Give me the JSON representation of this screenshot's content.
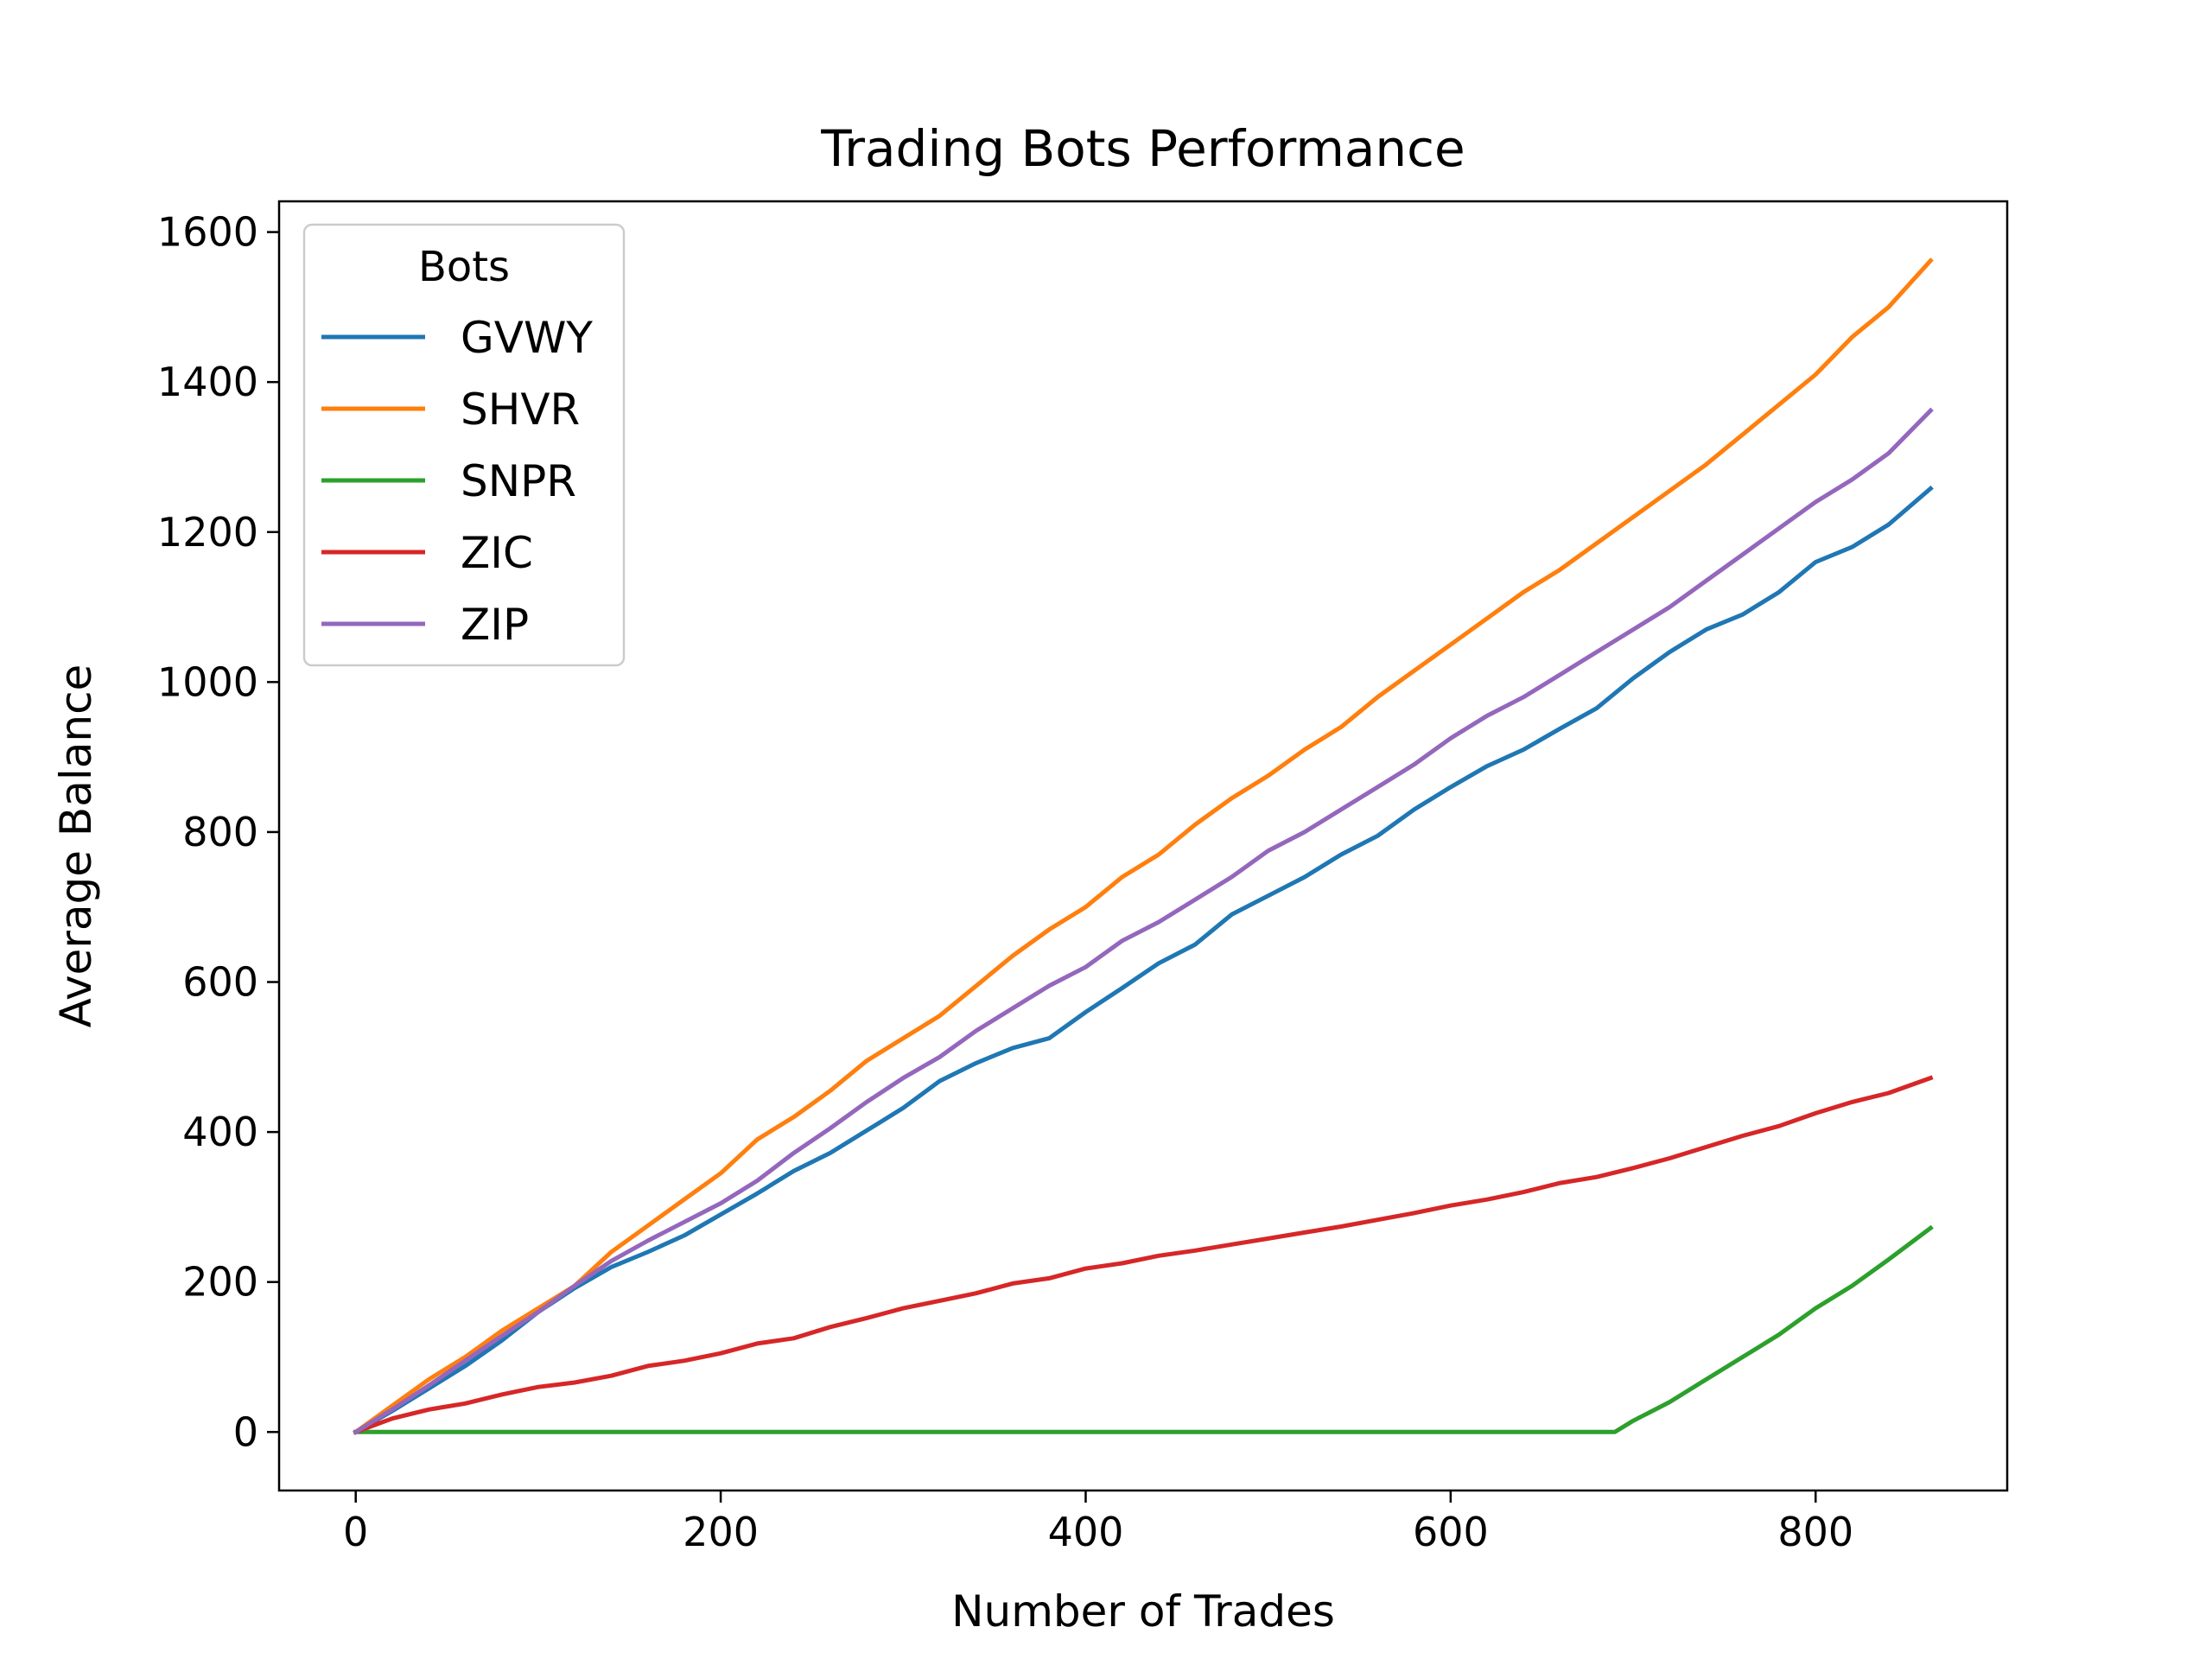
{
  "chart_data": {
    "type": "line",
    "title": "Trading Bots Performance",
    "xlabel": "Number of Trades",
    "ylabel": "Average Balance",
    "xlim": [
      -42,
      905
    ],
    "ylim": [
      -78,
      1641
    ],
    "xticks": [
      0,
      200,
      400,
      600,
      800
    ],
    "yticks": [
      0,
      200,
      400,
      600,
      800,
      1000,
      1200,
      1400,
      1600
    ],
    "grid": false,
    "legend": {
      "title": "Bots",
      "position": "upper left"
    },
    "series": [
      {
        "name": "GVWY",
        "color": "#1f77b4",
        "x": [
          0,
          20,
          40,
          60,
          80,
          100,
          120,
          140,
          160,
          180,
          200,
          220,
          240,
          260,
          280,
          300,
          320,
          340,
          360,
          380,
          400,
          420,
          440,
          460,
          480,
          500,
          520,
          540,
          560,
          580,
          600,
          620,
          640,
          660,
          680,
          700,
          720,
          740,
          760,
          780,
          800,
          820,
          840,
          863
        ],
        "values": [
          0,
          28,
          58,
          88,
          122,
          160,
          192,
          220,
          240,
          262,
          290,
          318,
          348,
          372,
          402,
          432,
          468,
          492,
          512,
          525,
          560,
          592,
          625,
          650,
          690,
          715,
          740,
          770,
          795,
          830,
          860,
          888,
          910,
          938,
          965,
          1005,
          1040,
          1070,
          1090,
          1120,
          1160,
          1180,
          1210,
          1258
        ]
      },
      {
        "name": "SHVR",
        "color": "#ff7f0e",
        "x": [
          0,
          20,
          40,
          60,
          80,
          100,
          120,
          140,
          160,
          180,
          200,
          220,
          240,
          260,
          280,
          300,
          320,
          340,
          360,
          380,
          400,
          420,
          440,
          460,
          480,
          500,
          520,
          540,
          560,
          580,
          600,
          620,
          640,
          660,
          680,
          700,
          720,
          740,
          760,
          780,
          800,
          820,
          840,
          863
        ],
        "values": [
          0,
          35,
          70,
          100,
          135,
          165,
          195,
          240,
          275,
          310,
          345,
          390,
          420,
          455,
          495,
          525,
          555,
          595,
          635,
          670,
          700,
          740,
          770,
          810,
          845,
          875,
          910,
          940,
          980,
          1015,
          1050,
          1085,
          1120,
          1150,
          1185,
          1220,
          1255,
          1290,
          1330,
          1370,
          1410,
          1460,
          1500,
          1562
        ]
      },
      {
        "name": "SNPR",
        "color": "#2ca02c",
        "x": [
          0,
          100,
          200,
          300,
          400,
          500,
          600,
          690,
          700,
          720,
          740,
          760,
          780,
          800,
          820,
          840,
          863
        ],
        "values": [
          0,
          0,
          0,
          0,
          0,
          0,
          0,
          0,
          15,
          40,
          70,
          100,
          130,
          165,
          195,
          230,
          272
        ]
      },
      {
        "name": "ZIC",
        "color": "#d62728",
        "x": [
          0,
          20,
          40,
          60,
          80,
          100,
          120,
          140,
          160,
          180,
          200,
          220,
          240,
          260,
          280,
          300,
          320,
          340,
          360,
          380,
          400,
          420,
          440,
          460,
          480,
          500,
          520,
          540,
          560,
          580,
          600,
          620,
          640,
          660,
          680,
          700,
          720,
          740,
          760,
          780,
          800,
          820,
          840,
          863
        ],
        "values": [
          0,
          18,
          30,
          38,
          50,
          60,
          66,
          75,
          88,
          95,
          105,
          118,
          125,
          140,
          152,
          165,
          175,
          185,
          198,
          205,
          218,
          225,
          235,
          242,
          250,
          258,
          266,
          274,
          283,
          292,
          302,
          310,
          320,
          332,
          340,
          352,
          365,
          380,
          395,
          408,
          425,
          440,
          452,
          472
        ]
      },
      {
        "name": "ZIP",
        "color": "#9467bd",
        "x": [
          0,
          20,
          40,
          60,
          80,
          100,
          120,
          140,
          160,
          180,
          200,
          220,
          240,
          260,
          280,
          300,
          320,
          340,
          360,
          380,
          400,
          420,
          440,
          460,
          480,
          500,
          520,
          540,
          560,
          580,
          600,
          620,
          640,
          660,
          680,
          700,
          720,
          740,
          760,
          780,
          800,
          820,
          840,
          863
        ],
        "values": [
          0,
          30,
          62,
          95,
          128,
          160,
          195,
          228,
          255,
          280,
          305,
          335,
          372,
          405,
          440,
          472,
          500,
          535,
          565,
          595,
          620,
          655,
          680,
          710,
          740,
          775,
          800,
          830,
          860,
          890,
          925,
          955,
          980,
          1010,
          1040,
          1070,
          1100,
          1135,
          1170,
          1205,
          1240,
          1270,
          1305,
          1362
        ]
      }
    ]
  }
}
